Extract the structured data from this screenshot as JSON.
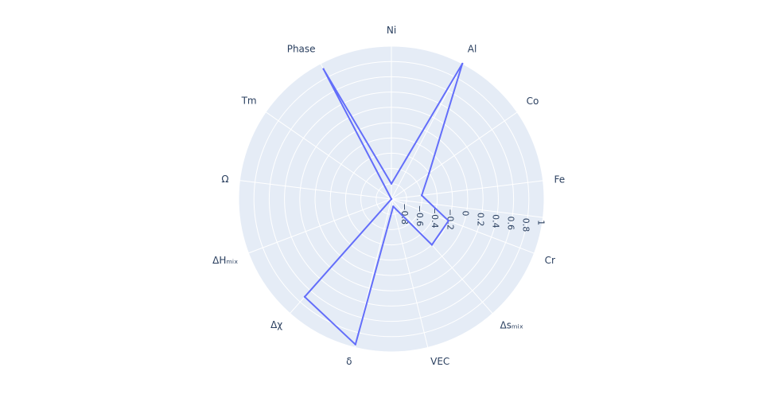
{
  "chart_data": {
    "type": "radar",
    "title": "",
    "categories": [
      "Ni",
      "Al",
      "Co",
      "Fe",
      "Cr",
      "Δsₘᵢₓ",
      "VEC",
      "δ",
      "Δχ",
      "ΔHₘᵢₓ",
      "Ω",
      "Tm",
      "Phase"
    ],
    "category_angles_deg": [
      90,
      62.3,
      34.6,
      6.9,
      -20.8,
      -48.5,
      -76.2,
      -103.9,
      -131.6,
      -159.3,
      173,
      145.3,
      117.6
    ],
    "radial_axis": {
      "range": [
        -1,
        1
      ],
      "ticks": [
        -0.8,
        -0.6,
        -0.4,
        -0.2,
        0,
        0.2,
        0.4,
        0.6,
        0.8,
        1
      ],
      "tick_labels": [
        "−0.8",
        "−0.6",
        "−0.4",
        "−0.2",
        "0",
        "0.2",
        "0.4",
        "0.6",
        "0.8",
        "1"
      ],
      "angle_deg": -6.9
    },
    "series": [
      {
        "values": [
          -0.8,
          1.0,
          -0.4,
          -0.6,
          -0.2,
          -0.2,
          -0.9,
          0.96,
          0.71,
          -1.0,
          -1.0,
          -1.0,
          0.92
        ],
        "color": "#636efa"
      }
    ],
    "colors": {
      "background": "#e5ecf6",
      "grid": "#ffffff",
      "text": "#2a3f5f",
      "line": "#636efa"
    }
  }
}
